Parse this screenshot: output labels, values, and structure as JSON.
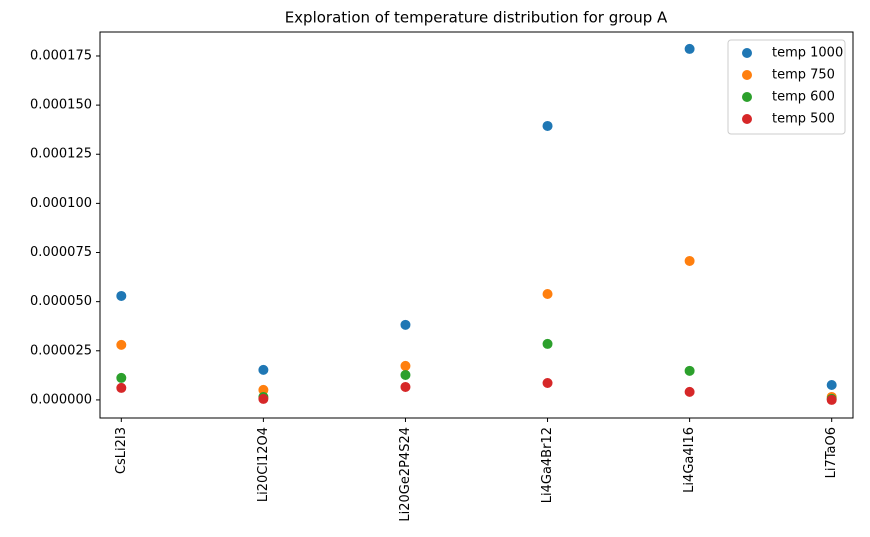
{
  "chart_data": {
    "type": "scatter",
    "title": "Exploration of temperature distribution for group A",
    "categories": [
      "CsLi2I3",
      "Li20Cl12O4",
      "Li20Ge2P4S24",
      "Li4Ga4Br12",
      "Li4Ga4I16",
      "Li7TaO6"
    ],
    "series": [
      {
        "name": "temp 1000",
        "color": "#1f77b4",
        "values": [
          5.29e-05,
          1.53e-05,
          3.82e-05,
          0.0001394,
          0.0001786,
          7.6e-06
        ]
      },
      {
        "name": "temp 750",
        "color": "#ff7f0e",
        "values": [
          2.8e-05,
          5.1e-06,
          1.73e-05,
          5.39e-05,
          7.07e-05,
          1.5e-06
        ]
      },
      {
        "name": "temp 600",
        "color": "#2ca02c",
        "values": [
          1.12e-05,
          1.5e-06,
          1.27e-05,
          2.85e-05,
          1.48e-05,
          5e-07
        ]
      },
      {
        "name": "temp 500",
        "color": "#d62728",
        "values": [
          6.1e-06,
          5e-07,
          6.6e-06,
          8.6e-06,
          4.1e-06,
          0.0
        ]
      }
    ],
    "ylim": [
      -9.2e-06,
      0.0001872
    ],
    "yticks": [
      {
        "value": 0,
        "label": "0.000000"
      },
      {
        "value": 2.5e-05,
        "label": "0.000025"
      },
      {
        "value": 5e-05,
        "label": "0.000050"
      },
      {
        "value": 7.5e-05,
        "label": "0.000075"
      },
      {
        "value": 0.0001,
        "label": "0.000100"
      },
      {
        "value": 0.000125,
        "label": "0.000125"
      },
      {
        "value": 0.00015,
        "label": "0.000150"
      },
      {
        "value": 0.000175,
        "label": "0.000175"
      }
    ],
    "legend": "upper right"
  }
}
